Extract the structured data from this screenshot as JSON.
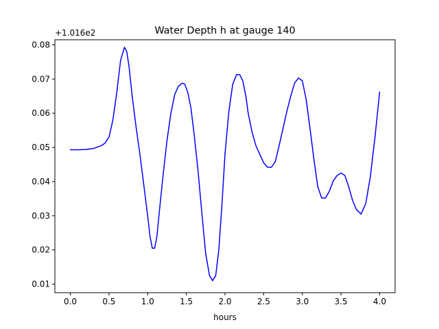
{
  "chart_data": {
    "type": "line",
    "title": "Water Depth h at gauge 140",
    "xlabel": "hours",
    "ylabel": "",
    "offset_text": "+1.016e2",
    "xlim": [
      -0.2,
      4.2
    ],
    "ylim": [
      0.0075,
      0.0815
    ],
    "xticks": [
      0.0,
      0.5,
      1.0,
      1.5,
      2.0,
      2.5,
      3.0,
      3.5,
      4.0
    ],
    "xtick_labels": [
      "0.0",
      "0.5",
      "1.0",
      "1.5",
      "2.0",
      "2.5",
      "3.0",
      "3.5",
      "4.0"
    ],
    "yticks": [
      0.01,
      0.02,
      0.03,
      0.04,
      0.05,
      0.06,
      0.07,
      0.08
    ],
    "ytick_labels": [
      "0.01",
      "0.02",
      "0.03",
      "0.04",
      "0.05",
      "0.06",
      "0.07",
      "0.08"
    ],
    "grid": false,
    "legend": "none",
    "series": [
      {
        "color": "#0000ff",
        "x": [
          0.0,
          0.1,
          0.2,
          0.3,
          0.4,
          0.45,
          0.5,
          0.55,
          0.6,
          0.65,
          0.7,
          0.73,
          0.76,
          0.8,
          0.85,
          0.9,
          0.95,
          1.0,
          1.03,
          1.06,
          1.09,
          1.12,
          1.15,
          1.2,
          1.25,
          1.3,
          1.35,
          1.4,
          1.45,
          1.48,
          1.52,
          1.56,
          1.6,
          1.65,
          1.7,
          1.75,
          1.8,
          1.84,
          1.88,
          1.92,
          1.96,
          2.0,
          2.05,
          2.1,
          2.15,
          2.19,
          2.23,
          2.27,
          2.3,
          2.35,
          2.4,
          2.45,
          2.5,
          2.55,
          2.6,
          2.65,
          2.7,
          2.75,
          2.8,
          2.85,
          2.9,
          2.95,
          3.0,
          3.05,
          3.1,
          3.15,
          3.2,
          3.25,
          3.3,
          3.35,
          3.4,
          3.45,
          3.5,
          3.55,
          3.6,
          3.65,
          3.7,
          3.76,
          3.82,
          3.88,
          3.94,
          4.0
        ],
        "y": [
          0.0493,
          0.0493,
          0.0494,
          0.0497,
          0.0505,
          0.0513,
          0.053,
          0.058,
          0.066,
          0.0755,
          0.0793,
          0.078,
          0.0735,
          0.065,
          0.056,
          0.048,
          0.039,
          0.03,
          0.024,
          0.0205,
          0.0205,
          0.024,
          0.031,
          0.042,
          0.052,
          0.06,
          0.0655,
          0.068,
          0.0688,
          0.0685,
          0.066,
          0.0615,
          0.054,
          0.0435,
          0.031,
          0.019,
          0.0125,
          0.011,
          0.0125,
          0.02,
          0.033,
          0.048,
          0.0605,
          0.0685,
          0.0713,
          0.0713,
          0.0695,
          0.065,
          0.06,
          0.0545,
          0.0505,
          0.048,
          0.0455,
          0.0442,
          0.0442,
          0.0458,
          0.0505,
          0.0555,
          0.0605,
          0.065,
          0.0688,
          0.0703,
          0.0695,
          0.064,
          0.0555,
          0.0465,
          0.0385,
          0.0352,
          0.0352,
          0.0372,
          0.0402,
          0.0418,
          0.0425,
          0.0418,
          0.0385,
          0.0345,
          0.0318,
          0.0305,
          0.0335,
          0.0415,
          0.053,
          0.0662
        ]
      }
    ]
  }
}
